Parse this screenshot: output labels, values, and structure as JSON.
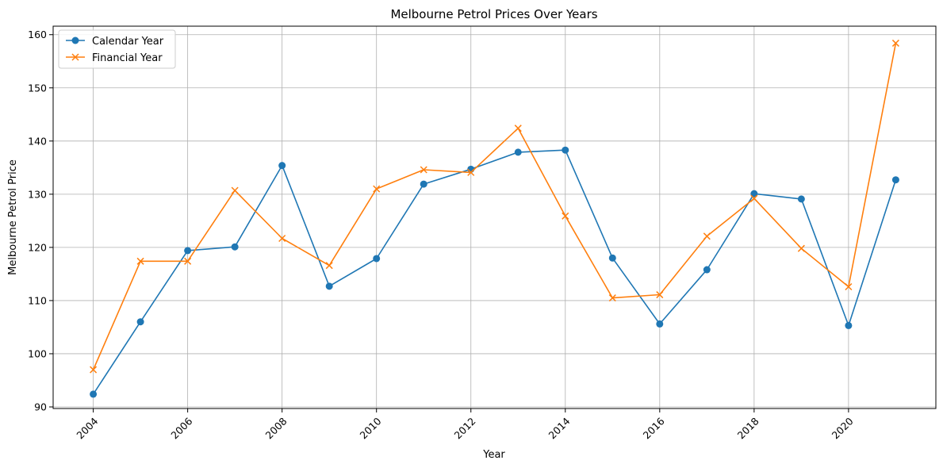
{
  "chart_data": {
    "type": "line",
    "title": "Melbourne Petrol Prices Over Years",
    "xlabel": "Year",
    "ylabel": "Melbourne Petrol Price",
    "x": [
      2004,
      2005,
      2006,
      2007,
      2008,
      2009,
      2010,
      2011,
      2012,
      2013,
      2014,
      2015,
      2016,
      2017,
      2018,
      2019,
      2020,
      2021
    ],
    "xticks": [
      "2004",
      "2006",
      "2008",
      "2010",
      "2012",
      "2014",
      "2016",
      "2018",
      "2020"
    ],
    "yticks": [
      "90",
      "100",
      "110",
      "120",
      "130",
      "140",
      "150",
      "160"
    ],
    "xlim": [
      2003.15,
      2021.85
    ],
    "ylim": [
      89.7,
      161.6
    ],
    "grid": true,
    "legend_position": "upper-left",
    "series": [
      {
        "name": "Calendar Year",
        "marker": "circle",
        "color": "#1f77b4",
        "values": [
          92.4,
          106.0,
          119.4,
          120.1,
          135.4,
          112.7,
          117.9,
          131.9,
          134.7,
          137.9,
          138.3,
          118.0,
          105.6,
          115.8,
          130.1,
          129.1,
          105.3,
          132.7
        ]
      },
      {
        "name": "Financial Year",
        "marker": "x",
        "color": "#ff7f0e",
        "values": [
          97.0,
          117.4,
          117.4,
          130.7,
          121.7,
          116.6,
          131.0,
          134.6,
          134.1,
          142.4,
          125.9,
          110.5,
          111.1,
          122.1,
          129.2,
          119.8,
          112.6,
          158.4
        ]
      }
    ]
  }
}
